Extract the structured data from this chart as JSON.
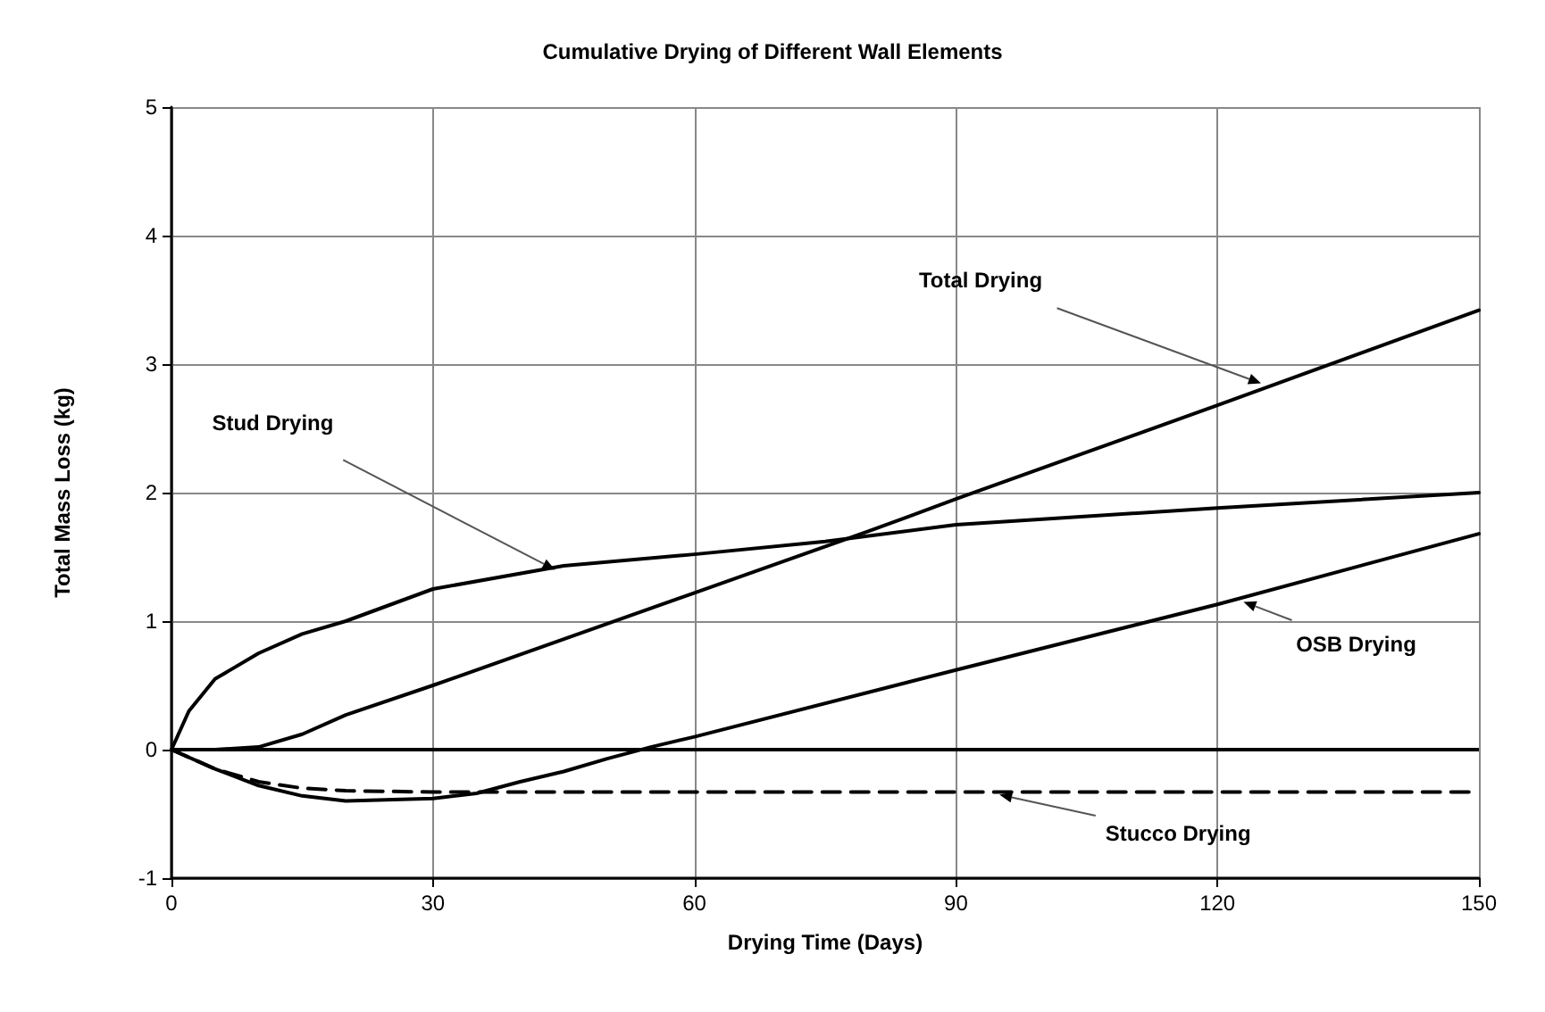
{
  "chart_data": {
    "type": "line",
    "title": "Cumulative Drying of Different Wall Elements",
    "xlabel": "Drying Time (Days)",
    "ylabel": "Total Mass Loss (kg)",
    "xlim": [
      0,
      150
    ],
    "xticks": [
      0,
      30,
      60,
      90,
      120,
      150
    ],
    "ylim": [
      -1,
      5
    ],
    "yticks": [
      -1,
      0,
      1,
      2,
      3,
      4,
      5
    ],
    "grid": true,
    "marker": "none",
    "series": [
      {
        "color": "#000000",
        "line_style": "solid",
        "x": [
          0,
          5,
          10,
          15,
          20,
          30,
          60,
          80,
          90,
          120,
          150
        ],
        "values": [
          0,
          0,
          0.02,
          0.12,
          0.27,
          0.5,
          1.22,
          1.7,
          1.95,
          2.68,
          3.42
        ]
      },
      {
        "color": "#000000",
        "line_style": "solid",
        "x": [
          0,
          2,
          5,
          10,
          15,
          20,
          30,
          45,
          60,
          75,
          90,
          120,
          150
        ],
        "values": [
          0,
          0.3,
          0.55,
          0.75,
          0.9,
          1,
          1.25,
          1.43,
          1.52,
          1.62,
          1.75,
          1.88,
          2
        ]
      },
      {
        "color": "#000000",
        "line_style": "solid",
        "x": [
          0,
          5,
          10,
          15,
          20,
          30,
          35,
          40,
          45,
          50,
          55,
          60,
          90,
          120,
          150
        ],
        "values": [
          0,
          -0.15,
          -0.28,
          -0.36,
          -0.4,
          -0.38,
          -0.34,
          -0.25,
          -0.17,
          -0.07,
          0.02,
          0.1,
          0.62,
          1.13,
          1.68
        ]
      },
      {
        "color": "#000000",
        "line_style": "dashed",
        "x": [
          0,
          5,
          10,
          15,
          20,
          30,
          150
        ],
        "values": [
          0,
          -0.15,
          -0.25,
          -0.3,
          -0.32,
          -0.33,
          -0.33
        ]
      }
    ],
    "annotations": [
      {
        "text": "Total Drying",
        "x": 125,
        "y": 2.85
      },
      {
        "text": "Stud Drying",
        "x": 44,
        "y": 1.4
      },
      {
        "text": "OSB Drying",
        "x": 123,
        "y": 1.15
      },
      {
        "text": "Stucco Drying",
        "x": 95,
        "y": -0.35
      }
    ]
  }
}
